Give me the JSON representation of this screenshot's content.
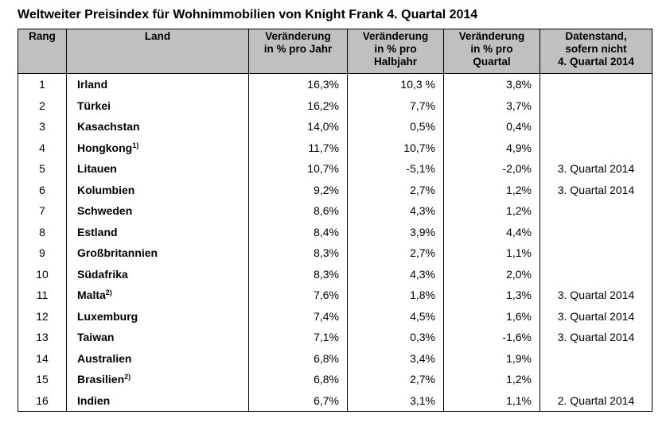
{
  "title": "Weltweiter Preisindex für Wohnimmobilien von Knight Frank 4. Quartal 2014",
  "columns": {
    "rank": "Rang",
    "land": "Land",
    "year": [
      "Veränderung",
      "in % pro Jahr"
    ],
    "half": [
      "Veränderung",
      "in % pro",
      "Halbjahr"
    ],
    "quarter": [
      "Veränderung",
      "in % pro",
      "Quartal"
    ],
    "date": [
      "Datenstand,",
      "sofern nicht",
      "4. Quartal 2014"
    ]
  },
  "rows": [
    {
      "rank": "1",
      "land": "Irland",
      "sup": "",
      "year": "16,3%",
      "half": "10,3 %",
      "quarter": "3,8%",
      "date": ""
    },
    {
      "rank": "2",
      "land": "Türkei",
      "sup": "",
      "year": "16,2%",
      "half": "7,7%",
      "quarter": "3,7%",
      "date": ""
    },
    {
      "rank": "3",
      "land": "Kasachstan",
      "sup": "",
      "year": "14,0%",
      "half": "0,5%",
      "quarter": "0,4%",
      "date": ""
    },
    {
      "rank": "4",
      "land": "Hongkong",
      "sup": "1)",
      "year": "11,7%",
      "half": "10,7%",
      "quarter": "4,9%",
      "date": ""
    },
    {
      "rank": "5",
      "land": "Litauen",
      "sup": "",
      "year": "10,7%",
      "half": "-5,1%",
      "quarter": "-2,0%",
      "date": "3. Quartal 2014"
    },
    {
      "rank": "6",
      "land": "Kolumbien",
      "sup": "",
      "year": "9,2%",
      "half": "2,7%",
      "quarter": "1,2%",
      "date": "3. Quartal 2014"
    },
    {
      "rank": "7",
      "land": "Schweden",
      "sup": "",
      "year": "8,6%",
      "half": "4,3%",
      "quarter": "1,2%",
      "date": ""
    },
    {
      "rank": "8",
      "land": "Estland",
      "sup": "",
      "year": "8,4%",
      "half": "3,9%",
      "quarter": "4,4%",
      "date": ""
    },
    {
      "rank": "9",
      "land": "Großbritannien",
      "sup": "",
      "year": "8,3%",
      "half": "2,7%",
      "quarter": "1,1%",
      "date": ""
    },
    {
      "rank": "10",
      "land": "Südafrika",
      "sup": "",
      "year": "8,3%",
      "half": "4,3%",
      "quarter": "2,0%",
      "date": ""
    },
    {
      "rank": "11",
      "land": "Malta",
      "sup": "2)",
      "year": "7,6%",
      "half": "1,8%",
      "quarter": "1,3%",
      "date": "3. Quartal 2014"
    },
    {
      "rank": "12",
      "land": "Luxemburg",
      "sup": "",
      "year": "7,4%",
      "half": "4,5%",
      "quarter": "1,6%",
      "date": "3. Quartal 2014"
    },
    {
      "rank": "13",
      "land": "Taiwan",
      "sup": "",
      "year": "7,1%",
      "half": "0,3%",
      "quarter": "-1,6%",
      "date": "3. Quartal 2014"
    },
    {
      "rank": "14",
      "land": "Australien",
      "sup": "",
      "year": "6,8%",
      "half": "3,4%",
      "quarter": "1,9%",
      "date": ""
    },
    {
      "rank": "15",
      "land": "Brasilien",
      "sup": "2)",
      "year": "6,8%",
      "half": "2,7%",
      "quarter": "1,2%",
      "date": ""
    },
    {
      "rank": "16",
      "land": "Indien",
      "sup": "",
      "year": "6,7%",
      "half": "3,1%",
      "quarter": "1,1%",
      "date": "2. Quartal 2014"
    }
  ]
}
